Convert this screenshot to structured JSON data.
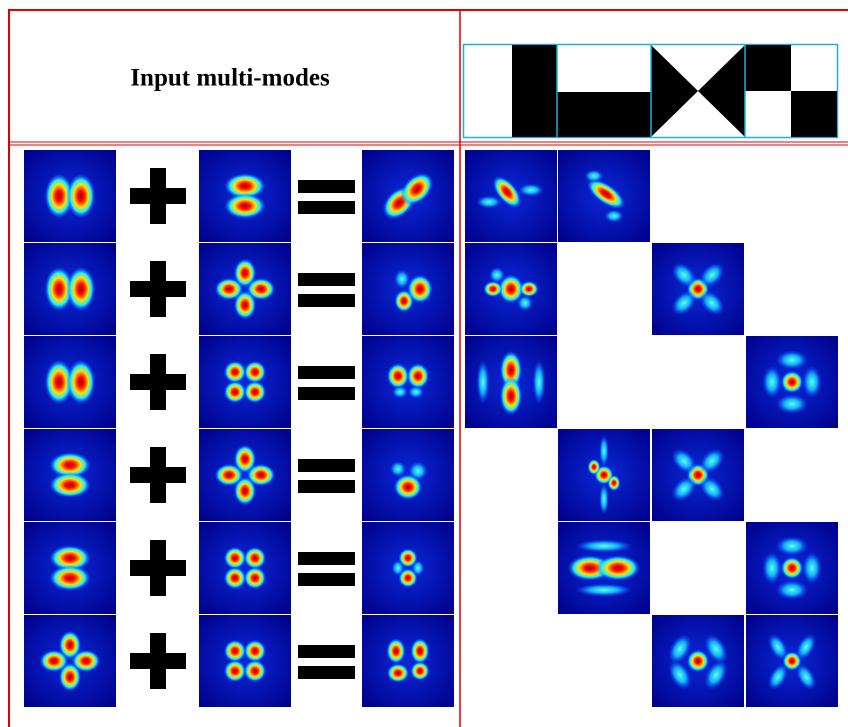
{
  "header": {
    "title": "Input multi-modes"
  }
}
